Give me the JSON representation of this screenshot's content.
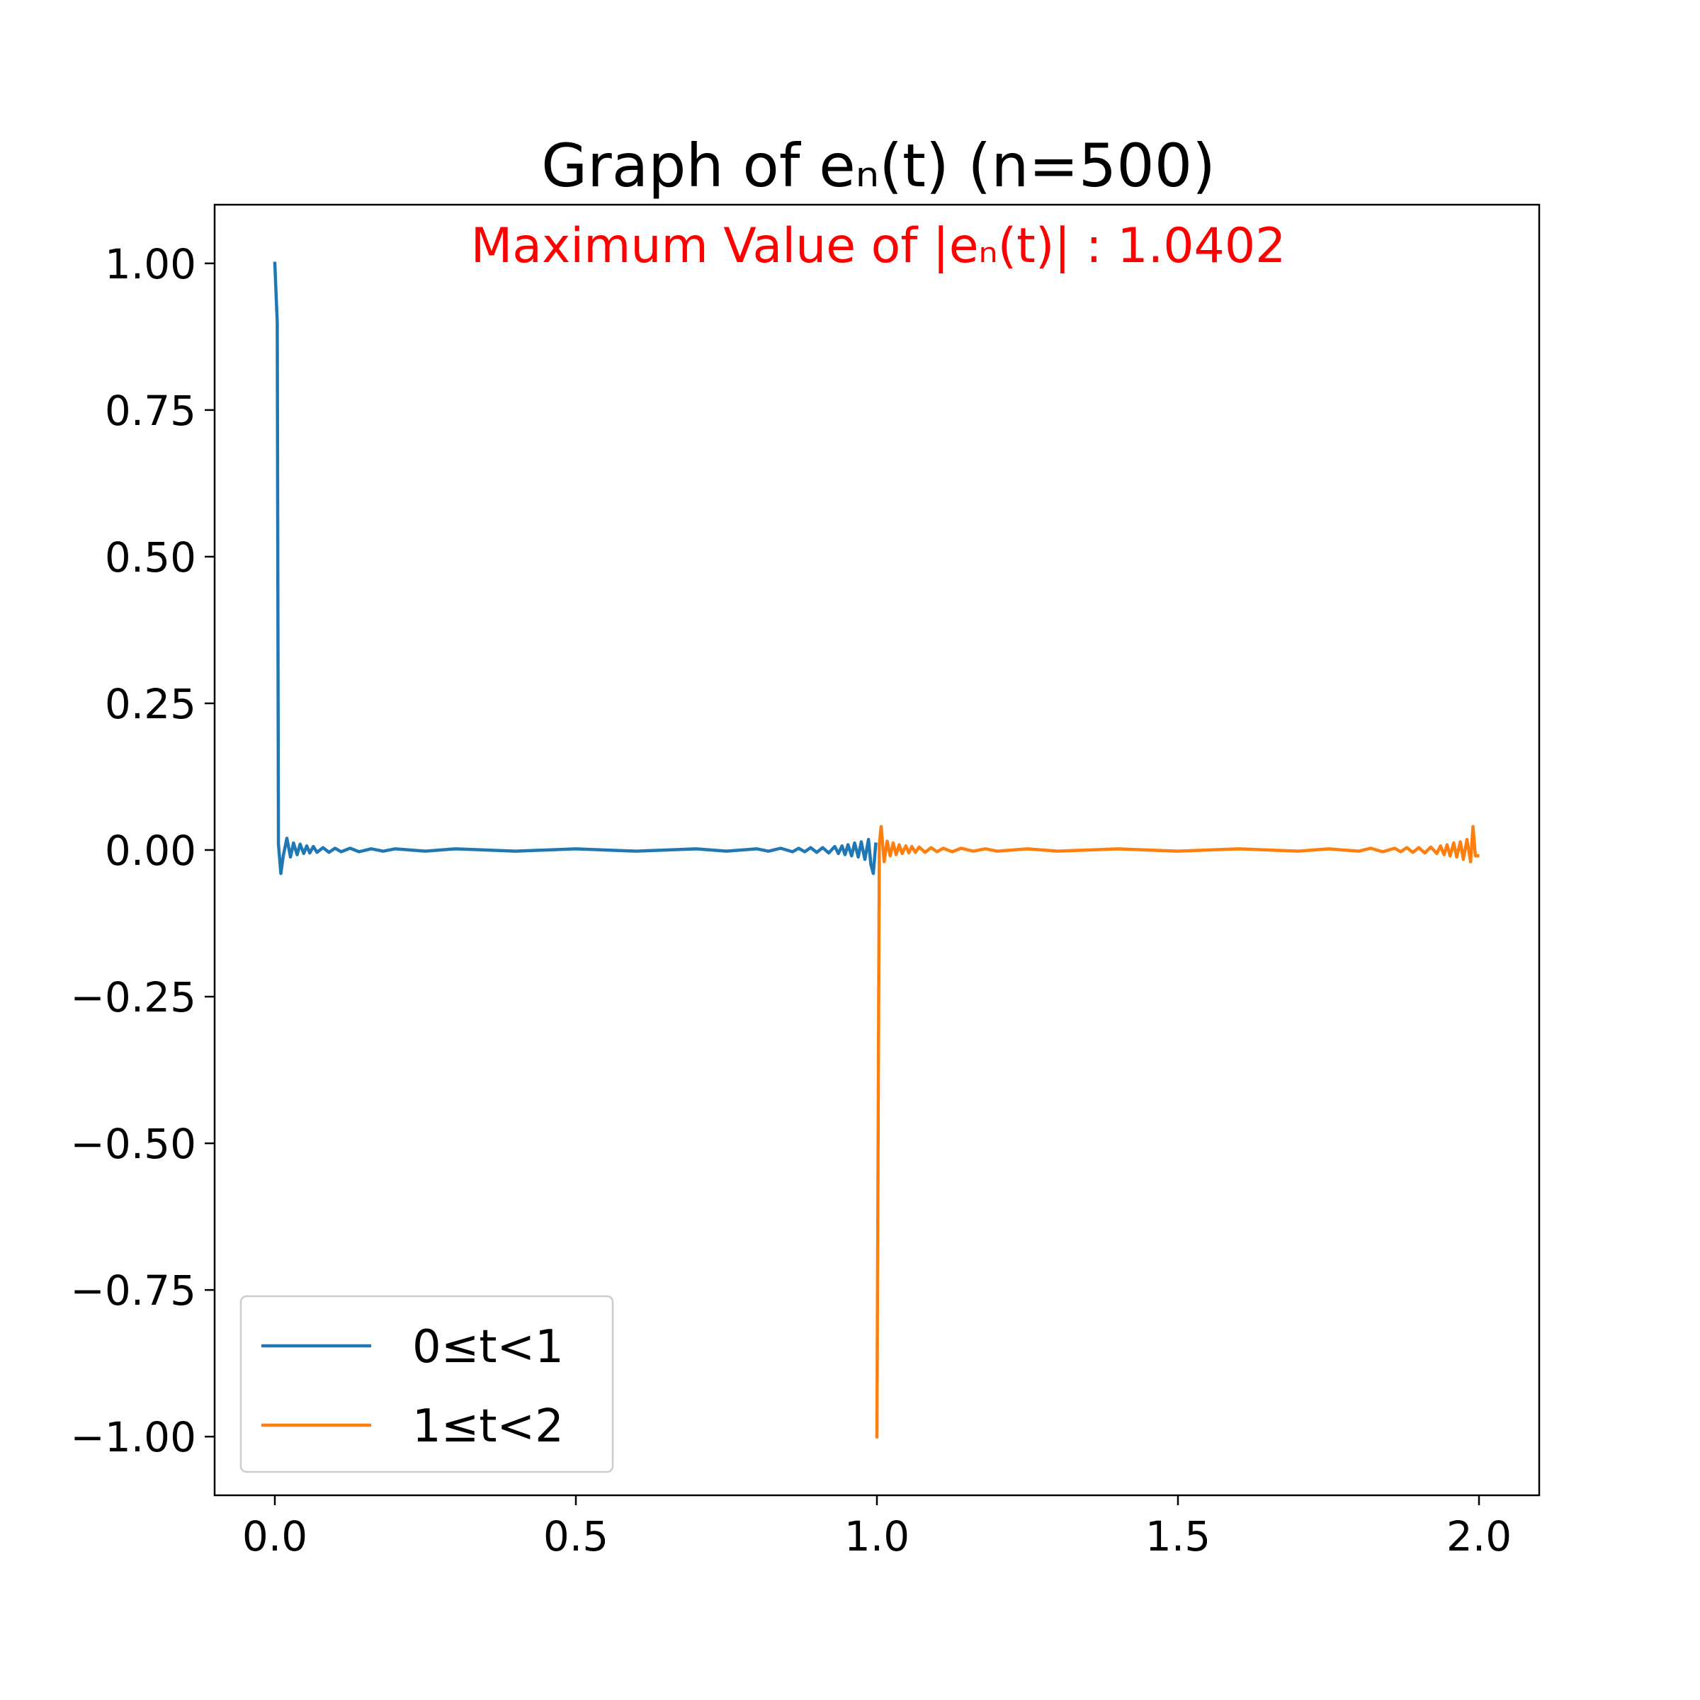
{
  "chart_data": {
    "type": "line",
    "title": "Graph of eₙ(t) (n=500)",
    "annotation": {
      "text": "Maximum Value of |eₙ(t)| : 1.0402",
      "color": "#ff0000"
    },
    "xlabel": "",
    "ylabel": "",
    "xlim": [
      -0.1,
      2.1
    ],
    "ylim": [
      -1.1,
      1.1
    ],
    "xticks": [
      0.0,
      0.5,
      1.0,
      1.5,
      2.0
    ],
    "xtick_labels": [
      "0.0",
      "0.5",
      "1.0",
      "1.5",
      "2.0"
    ],
    "yticks": [
      1.0,
      0.75,
      0.5,
      0.25,
      0.0,
      -0.25,
      -0.5,
      -0.75,
      -1.0
    ],
    "ytick_labels": [
      "1.00",
      "0.75",
      "0.50",
      "0.25",
      "0.00",
      "−0.25",
      "−0.50",
      "−0.75",
      "−1.00"
    ],
    "grid": false,
    "legend_position": "lower-left",
    "series": [
      {
        "name": "0≤t<1",
        "color": "#1f77b4",
        "x": [
          0.0,
          0.004,
          0.006,
          0.01,
          0.014,
          0.02,
          0.026,
          0.031,
          0.037,
          0.042,
          0.048,
          0.053,
          0.058,
          0.064,
          0.07,
          0.08,
          0.09,
          0.1,
          0.11,
          0.125,
          0.14,
          0.16,
          0.18,
          0.2,
          0.25,
          0.3,
          0.4,
          0.5,
          0.6,
          0.7,
          0.75,
          0.8,
          0.82,
          0.84,
          0.86,
          0.87,
          0.88,
          0.89,
          0.9,
          0.91,
          0.92,
          0.93,
          0.936,
          0.942,
          0.947,
          0.952,
          0.958,
          0.963,
          0.969,
          0.974,
          0.98,
          0.986,
          0.99,
          0.994,
          0.998
        ],
        "y": [
          1.0,
          0.9,
          0.01,
          -0.04,
          -0.01,
          0.02,
          -0.012,
          0.012,
          -0.008,
          0.01,
          -0.006,
          0.007,
          -0.005,
          0.006,
          -0.004,
          0.004,
          -0.004,
          0.003,
          -0.003,
          0.003,
          -0.003,
          0.002,
          -0.002,
          0.002,
          -0.002,
          0.002,
          -0.002,
          0.002,
          -0.002,
          0.002,
          -0.002,
          0.002,
          -0.002,
          0.003,
          -0.003,
          0.003,
          -0.003,
          0.004,
          -0.004,
          0.004,
          -0.005,
          0.006,
          -0.006,
          0.007,
          -0.008,
          0.009,
          -0.01,
          0.012,
          -0.012,
          0.014,
          -0.016,
          0.018,
          -0.025,
          -0.04,
          0.01
        ]
      },
      {
        "name": "1≤t<2",
        "color": "#ff7f0e",
        "x": [
          1.0,
          1.004,
          1.007,
          1.012,
          1.017,
          1.022,
          1.027,
          1.032,
          1.037,
          1.042,
          1.048,
          1.053,
          1.058,
          1.064,
          1.07,
          1.08,
          1.09,
          1.1,
          1.11,
          1.125,
          1.14,
          1.16,
          1.18,
          1.2,
          1.25,
          1.3,
          1.4,
          1.5,
          1.6,
          1.7,
          1.75,
          1.8,
          1.82,
          1.84,
          1.86,
          1.87,
          1.88,
          1.89,
          1.9,
          1.91,
          1.92,
          1.93,
          1.936,
          1.942,
          1.947,
          1.952,
          1.958,
          1.963,
          1.969,
          1.974,
          1.98,
          1.986,
          1.99,
          1.994,
          1.998
        ],
        "y": [
          -1.0,
          0.01,
          0.04,
          -0.02,
          0.015,
          -0.01,
          0.012,
          -0.008,
          0.009,
          -0.006,
          0.007,
          -0.005,
          0.006,
          -0.004,
          0.005,
          -0.004,
          0.004,
          -0.003,
          0.003,
          -0.003,
          0.003,
          -0.002,
          0.002,
          -0.002,
          0.002,
          -0.002,
          0.002,
          -0.002,
          0.002,
          -0.002,
          0.002,
          -0.002,
          0.003,
          -0.003,
          0.003,
          -0.003,
          0.004,
          -0.004,
          0.004,
          -0.005,
          0.005,
          -0.006,
          0.007,
          -0.008,
          0.009,
          -0.01,
          0.012,
          -0.012,
          0.014,
          -0.016,
          0.018,
          -0.02,
          0.04,
          -0.01,
          -0.01
        ]
      }
    ]
  }
}
